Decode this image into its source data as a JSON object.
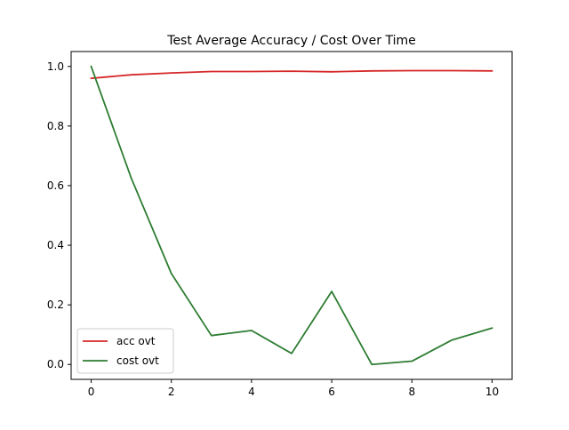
{
  "chart_data": {
    "type": "line",
    "title": "Test Average Accuracy / Cost Over Time",
    "xlabel": "",
    "ylabel": "",
    "x": [
      0,
      1,
      2,
      3,
      4,
      5,
      6,
      7,
      8,
      9,
      10
    ],
    "xlim": [
      -0.5,
      10.5
    ],
    "ylim": [
      -0.05,
      1.05
    ],
    "x_ticks": [
      "0",
      "2",
      "4",
      "6",
      "8",
      "10"
    ],
    "y_ticks": [
      "0.0",
      "0.2",
      "0.4",
      "0.6",
      "0.8",
      "1.0"
    ],
    "grid": false,
    "legend_position": "lower-left",
    "series": [
      {
        "name": "acc ovt",
        "color": "#d62728",
        "values": [
          0.96,
          0.972,
          0.978,
          0.983,
          0.983,
          0.984,
          0.982,
          0.985,
          0.986,
          0.986,
          0.985
        ]
      },
      {
        "name": "cost ovt",
        "color": "#2e7d32",
        "values": [
          1.0,
          0.625,
          0.305,
          0.097,
          0.114,
          0.037,
          0.245,
          0.0,
          0.011,
          0.082,
          0.122
        ]
      }
    ]
  }
}
